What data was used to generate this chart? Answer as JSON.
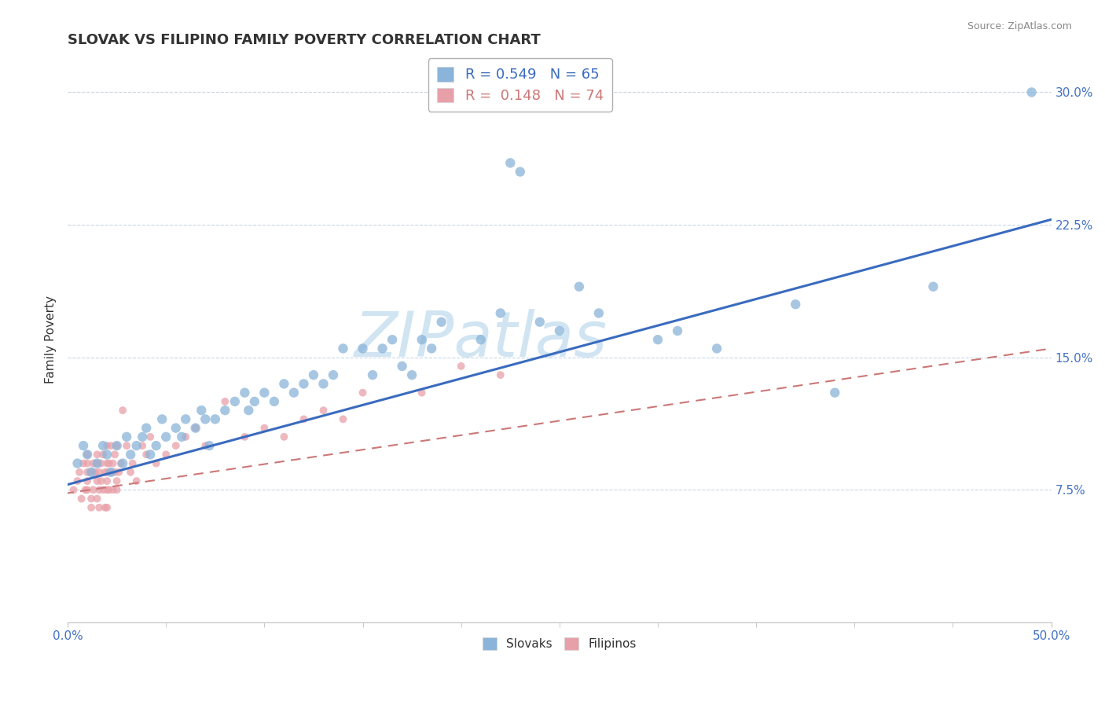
{
  "title": "SLOVAK VS FILIPINO FAMILY POVERTY CORRELATION CHART",
  "source": "Source: ZipAtlas.com",
  "ylabel": "Family Poverty",
  "xlim": [
    0.0,
    0.5
  ],
  "ylim": [
    0.0,
    0.32
  ],
  "ytick_positions": [
    0.075,
    0.15,
    0.225,
    0.3
  ],
  "yticklabels": [
    "7.5%",
    "15.0%",
    "22.5%",
    "30.0%"
  ],
  "slovak_color": "#8ab4d9",
  "filipino_color": "#e8a0a8",
  "slovak_line_color": "#3a6bbf",
  "filipino_line_color": "#cc7777",
  "legend_slovak_r": "R = 0.549",
  "legend_slovak_n": "N = 65",
  "legend_filipino_r": "R =  0.148",
  "legend_filipino_n": "N = 74",
  "watermark": "ZIPatlas",
  "watermark_color": "#d0e4f2",
  "slovak_line": [
    0.0,
    0.078,
    0.5,
    0.228
  ],
  "filipino_line": [
    -0.05,
    0.065,
    0.5,
    0.155
  ],
  "slovak_scatter": [
    [
      0.005,
      0.09
    ],
    [
      0.008,
      0.1
    ],
    [
      0.01,
      0.095
    ],
    [
      0.012,
      0.085
    ],
    [
      0.015,
      0.09
    ],
    [
      0.018,
      0.1
    ],
    [
      0.02,
      0.095
    ],
    [
      0.022,
      0.085
    ],
    [
      0.025,
      0.1
    ],
    [
      0.028,
      0.09
    ],
    [
      0.03,
      0.105
    ],
    [
      0.032,
      0.095
    ],
    [
      0.035,
      0.1
    ],
    [
      0.038,
      0.105
    ],
    [
      0.04,
      0.11
    ],
    [
      0.042,
      0.095
    ],
    [
      0.045,
      0.1
    ],
    [
      0.048,
      0.115
    ],
    [
      0.05,
      0.105
    ],
    [
      0.055,
      0.11
    ],
    [
      0.058,
      0.105
    ],
    [
      0.06,
      0.115
    ],
    [
      0.065,
      0.11
    ],
    [
      0.068,
      0.12
    ],
    [
      0.07,
      0.115
    ],
    [
      0.072,
      0.1
    ],
    [
      0.075,
      0.115
    ],
    [
      0.08,
      0.12
    ],
    [
      0.085,
      0.125
    ],
    [
      0.09,
      0.13
    ],
    [
      0.092,
      0.12
    ],
    [
      0.095,
      0.125
    ],
    [
      0.1,
      0.13
    ],
    [
      0.105,
      0.125
    ],
    [
      0.11,
      0.135
    ],
    [
      0.115,
      0.13
    ],
    [
      0.12,
      0.135
    ],
    [
      0.125,
      0.14
    ],
    [
      0.13,
      0.135
    ],
    [
      0.135,
      0.14
    ],
    [
      0.14,
      0.155
    ],
    [
      0.15,
      0.155
    ],
    [
      0.155,
      0.14
    ],
    [
      0.16,
      0.155
    ],
    [
      0.165,
      0.16
    ],
    [
      0.17,
      0.145
    ],
    [
      0.175,
      0.14
    ],
    [
      0.18,
      0.16
    ],
    [
      0.185,
      0.155
    ],
    [
      0.19,
      0.17
    ],
    [
      0.21,
      0.16
    ],
    [
      0.22,
      0.175
    ],
    [
      0.225,
      0.26
    ],
    [
      0.23,
      0.255
    ],
    [
      0.24,
      0.17
    ],
    [
      0.25,
      0.165
    ],
    [
      0.26,
      0.19
    ],
    [
      0.27,
      0.175
    ],
    [
      0.3,
      0.16
    ],
    [
      0.31,
      0.165
    ],
    [
      0.33,
      0.155
    ],
    [
      0.37,
      0.18
    ],
    [
      0.39,
      0.13
    ],
    [
      0.44,
      0.19
    ],
    [
      0.49,
      0.3
    ]
  ],
  "filipino_scatter": [
    [
      0.003,
      0.075
    ],
    [
      0.005,
      0.08
    ],
    [
      0.006,
      0.085
    ],
    [
      0.007,
      0.07
    ],
    [
      0.008,
      0.09
    ],
    [
      0.009,
      0.075
    ],
    [
      0.01,
      0.085
    ],
    [
      0.01,
      0.09
    ],
    [
      0.01,
      0.08
    ],
    [
      0.01,
      0.095
    ],
    [
      0.01,
      0.075
    ],
    [
      0.012,
      0.07
    ],
    [
      0.012,
      0.085
    ],
    [
      0.012,
      0.065
    ],
    [
      0.013,
      0.09
    ],
    [
      0.013,
      0.075
    ],
    [
      0.014,
      0.085
    ],
    [
      0.015,
      0.09
    ],
    [
      0.015,
      0.08
    ],
    [
      0.015,
      0.095
    ],
    [
      0.015,
      0.07
    ],
    [
      0.016,
      0.085
    ],
    [
      0.016,
      0.075
    ],
    [
      0.016,
      0.065
    ],
    [
      0.017,
      0.09
    ],
    [
      0.017,
      0.08
    ],
    [
      0.018,
      0.095
    ],
    [
      0.018,
      0.075
    ],
    [
      0.019,
      0.085
    ],
    [
      0.019,
      0.065
    ],
    [
      0.02,
      0.09
    ],
    [
      0.02,
      0.08
    ],
    [
      0.02,
      0.1
    ],
    [
      0.02,
      0.075
    ],
    [
      0.02,
      0.085
    ],
    [
      0.02,
      0.065
    ],
    [
      0.021,
      0.09
    ],
    [
      0.021,
      0.075
    ],
    [
      0.022,
      0.085
    ],
    [
      0.022,
      0.1
    ],
    [
      0.023,
      0.09
    ],
    [
      0.023,
      0.075
    ],
    [
      0.024,
      0.085
    ],
    [
      0.024,
      0.095
    ],
    [
      0.025,
      0.1
    ],
    [
      0.025,
      0.08
    ],
    [
      0.025,
      0.075
    ],
    [
      0.026,
      0.085
    ],
    [
      0.027,
      0.09
    ],
    [
      0.028,
      0.12
    ],
    [
      0.03,
      0.1
    ],
    [
      0.032,
      0.085
    ],
    [
      0.033,
      0.09
    ],
    [
      0.035,
      0.08
    ],
    [
      0.038,
      0.1
    ],
    [
      0.04,
      0.095
    ],
    [
      0.042,
      0.105
    ],
    [
      0.045,
      0.09
    ],
    [
      0.05,
      0.095
    ],
    [
      0.055,
      0.1
    ],
    [
      0.06,
      0.105
    ],
    [
      0.065,
      0.11
    ],
    [
      0.07,
      0.1
    ],
    [
      0.08,
      0.125
    ],
    [
      0.09,
      0.105
    ],
    [
      0.1,
      0.11
    ],
    [
      0.11,
      0.105
    ],
    [
      0.12,
      0.115
    ],
    [
      0.13,
      0.12
    ],
    [
      0.14,
      0.115
    ],
    [
      0.15,
      0.13
    ],
    [
      0.18,
      0.13
    ],
    [
      0.2,
      0.145
    ],
    [
      0.22,
      0.14
    ]
  ],
  "title_fontsize": 13,
  "axis_label_fontsize": 11,
  "tick_fontsize": 11,
  "legend_fontsize": 13,
  "dot_size_slovak": 80,
  "dot_size_filipino": 50
}
